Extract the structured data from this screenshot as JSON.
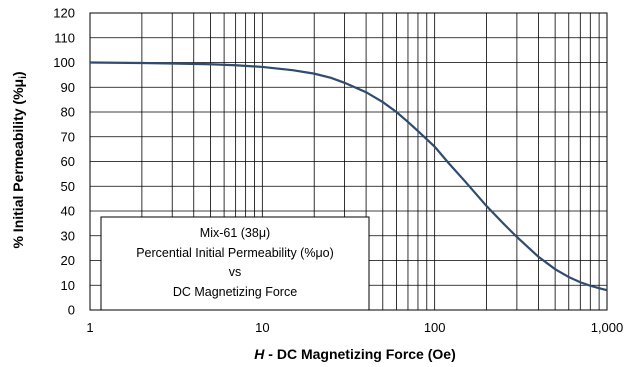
{
  "chart_data": {
    "type": "line",
    "xscale": "log",
    "xlabel_var": "H",
    "xlabel_rest": " - DC Magnetizing Force (Oe)",
    "ylabel": "% Initial Permeability (%μ",
    "ylabel_sub": "i",
    "ylabel_close": ")",
    "xlim": [
      1,
      1000
    ],
    "ylim": [
      0,
      120
    ],
    "x_tick_labels": [
      "1",
      "10",
      "100",
      "1,000"
    ],
    "y_ticks": [
      0,
      10,
      20,
      30,
      40,
      50,
      60,
      70,
      80,
      90,
      100,
      110,
      120
    ],
    "grid": true,
    "annotation": {
      "lines": [
        "Mix-61  (38μ)",
        "Percential Initial Permeability (%μo)",
        "vs",
        "DC Magnetizing Force"
      ]
    },
    "series": [
      {
        "color": "#2f4b6e",
        "x": [
          1,
          2,
          3,
          5,
          7,
          10,
          15,
          20,
          25,
          30,
          40,
          50,
          60,
          70,
          80,
          100,
          120,
          150,
          200,
          250,
          300,
          400,
          500,
          600,
          700,
          800,
          900,
          1000
        ],
        "y": [
          100,
          99.8,
          99.6,
          99.3,
          98.9,
          98.2,
          96.9,
          95.5,
          93.8,
          91.8,
          88,
          84,
          80,
          76,
          72.3,
          66,
          59.5,
          52,
          42,
          35,
          29.5,
          21.5,
          16.5,
          13.3,
          11.2,
          9.8,
          8.8,
          8
        ]
      }
    ]
  }
}
